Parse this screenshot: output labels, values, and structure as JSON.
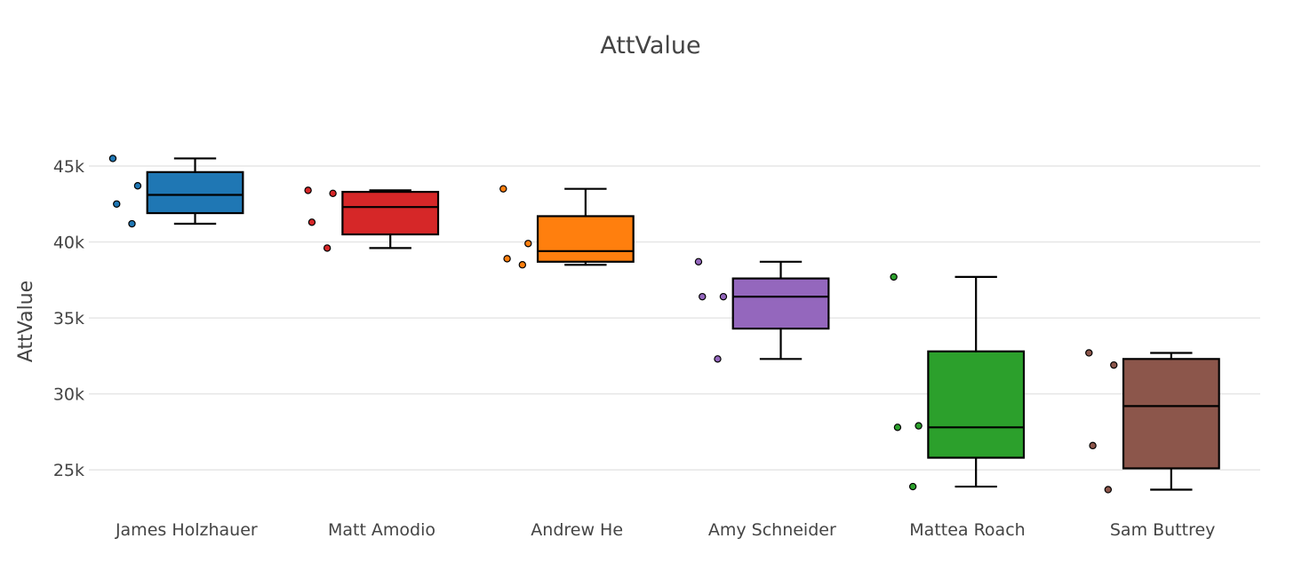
{
  "chart_data": {
    "type": "box",
    "title": "AttValue",
    "xlabel": "",
    "ylabel": "AttValue",
    "ylim": [
      22500,
      49500
    ],
    "yticks": [
      25000,
      30000,
      35000,
      40000,
      45000
    ],
    "ytick_labels": [
      "25k",
      "30k",
      "35k",
      "40k",
      "45k"
    ],
    "grid": true,
    "categories": [
      "James Holzhauer",
      "Matt Amodio",
      "Andrew He",
      "Amy Schneider",
      "Mattea Roach",
      "Sam Buttrey"
    ],
    "series": [
      {
        "name": "James Holzhauer",
        "color": "#1f77b4",
        "min": 41200,
        "q1": 41900,
        "median": 43100,
        "q3": 44600,
        "max": 45500,
        "points": [
          45500,
          42500,
          43700,
          41200
        ]
      },
      {
        "name": "Matt Amodio",
        "color": "#d62728",
        "min": 39600,
        "q1": 40500,
        "median": 42300,
        "q3": 43300,
        "max": 43400,
        "points": [
          43400,
          41300,
          43200,
          39600
        ]
      },
      {
        "name": "Andrew He",
        "color": "#ff7f0e",
        "min": 38500,
        "q1": 38700,
        "median": 39400,
        "q3": 41700,
        "max": 43500,
        "points": [
          43500,
          38900,
          39900,
          38500
        ]
      },
      {
        "name": "Amy Schneider",
        "color": "#9467bd",
        "min": 32300,
        "q1": 34300,
        "median": 36400,
        "q3": 37600,
        "max": 38700,
        "points": [
          38700,
          36400,
          36400,
          32300
        ]
      },
      {
        "name": "Mattea Roach",
        "color": "#2ca02c",
        "min": 23900,
        "q1": 25800,
        "median": 27800,
        "q3": 32800,
        "max": 37700,
        "points": [
          37700,
          27800,
          27900,
          23900
        ]
      },
      {
        "name": "Sam Buttrey",
        "color": "#8c564b",
        "min": 23700,
        "q1": 25100,
        "median": 29200,
        "q3": 32300,
        "max": 32700,
        "points": [
          32700,
          26600,
          31900,
          23700
        ]
      }
    ]
  }
}
